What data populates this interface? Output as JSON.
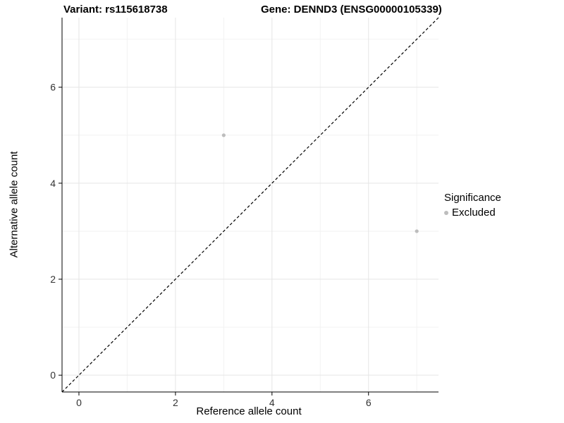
{
  "title": {
    "left": "Variant: rs115618738",
    "right": "Gene: DENND3 (ENSG00000105339)"
  },
  "chart_data": {
    "type": "scatter",
    "title_left": "Variant: rs115618738",
    "title_right": "Gene: DENND3 (ENSG00000105339)",
    "xlabel": "Reference allele count",
    "ylabel": "Alternative allele count",
    "xlim": [
      -0.35,
      7.45
    ],
    "ylim": [
      -0.35,
      7.45
    ],
    "xticks": [
      0,
      2,
      4,
      6
    ],
    "yticks": [
      0,
      2,
      4,
      6
    ],
    "minor_xticks": [
      1,
      3,
      5,
      7
    ],
    "minor_yticks": [
      1,
      3,
      5,
      7
    ],
    "grid": true,
    "points": [
      {
        "x": 3,
        "y": 5
      },
      {
        "x": 7,
        "y": 3
      }
    ],
    "identity_line": {
      "style": "dashed",
      "color": "#000000",
      "slope": 1,
      "intercept": 0
    },
    "point_color": "#bdbdbd",
    "legend": {
      "position": "right",
      "title": "Significance",
      "entries": [
        {
          "label": "Excluded",
          "color": "#bdbdbd"
        }
      ]
    },
    "colors": {
      "axis_line": "#000000",
      "major_grid": "#e5e5e5",
      "minor_grid": "#f2f2f2",
      "tick_label": "#333333",
      "panel_background": "#ffffff"
    }
  }
}
